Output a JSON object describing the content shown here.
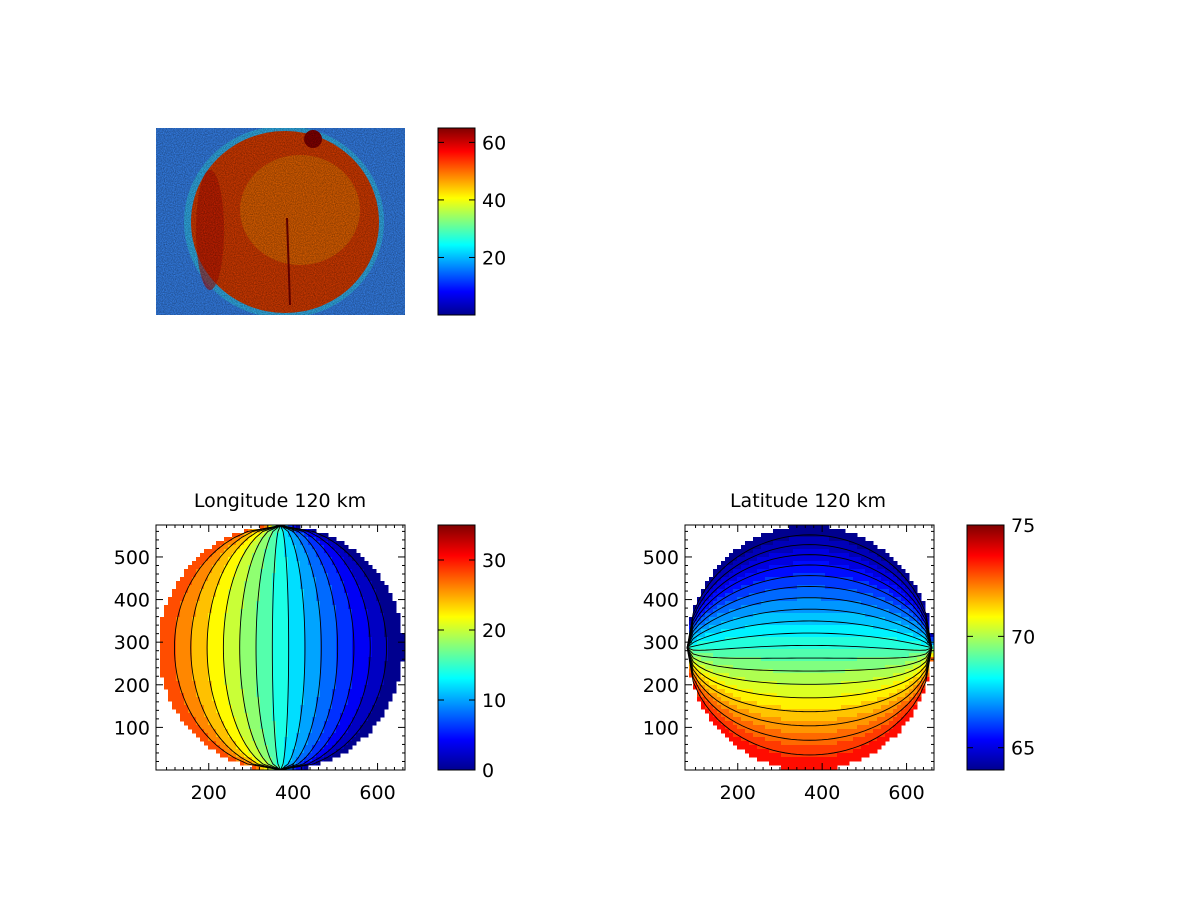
{
  "colormap": [
    "#00008f",
    "#0000ff",
    "#0080ff",
    "#00ffff",
    "#80ff80",
    "#ffff00",
    "#ff8000",
    "#ff0000",
    "#800000"
  ],
  "chart_data": [
    {
      "type": "heatmap",
      "title": "",
      "description_values": "raw intensity image of a bright disk on a noisy background",
      "colorbar": {
        "range": [
          0,
          65
        ],
        "ticks": [
          20,
          40,
          60
        ]
      },
      "axes_visible": false
    },
    {
      "type": "heatmap",
      "title": "Longitude 120 km",
      "xlim": [
        75,
        665
      ],
      "ylim": [
        0,
        575
      ],
      "xticks": [
        200,
        400,
        600
      ],
      "yticks": [
        100,
        200,
        300,
        400,
        500
      ],
      "disk": {
        "cx": 370,
        "cy": 287,
        "rx": 290,
        "ry": 287
      },
      "field": "longitude",
      "field_range": [
        0,
        35
      ],
      "left_edge_value": 30,
      "right_edge_value": 0,
      "contour_levels": [
        2,
        4,
        6,
        8,
        10,
        12,
        14,
        16,
        18,
        20,
        22,
        24,
        26,
        28,
        30
      ],
      "colorbar": {
        "range": [
          0,
          35
        ],
        "ticks": [
          0,
          10,
          20,
          30
        ]
      }
    },
    {
      "type": "heatmap",
      "title": "Latitude 120 km",
      "xlim": [
        75,
        665
      ],
      "ylim": [
        0,
        575
      ],
      "xticks": [
        200,
        400,
        600
      ],
      "yticks": [
        100,
        200,
        300,
        400,
        500
      ],
      "disk": {
        "cx": 370,
        "cy": 287,
        "rx": 290,
        "ry": 287
      },
      "field": "latitude",
      "field_range": [
        64,
        75
      ],
      "bottom_edge_value": 74,
      "top_edge_value": 64,
      "contour_levels": [
        64.5,
        65,
        65.5,
        66,
        66.5,
        67,
        67.5,
        68,
        68.5,
        69,
        69.5,
        70,
        70.5,
        71,
        71.5,
        72,
        72.5,
        73,
        73.5
      ],
      "colorbar": {
        "range": [
          64,
          75
        ],
        "ticks": [
          65,
          70,
          75
        ]
      }
    }
  ]
}
